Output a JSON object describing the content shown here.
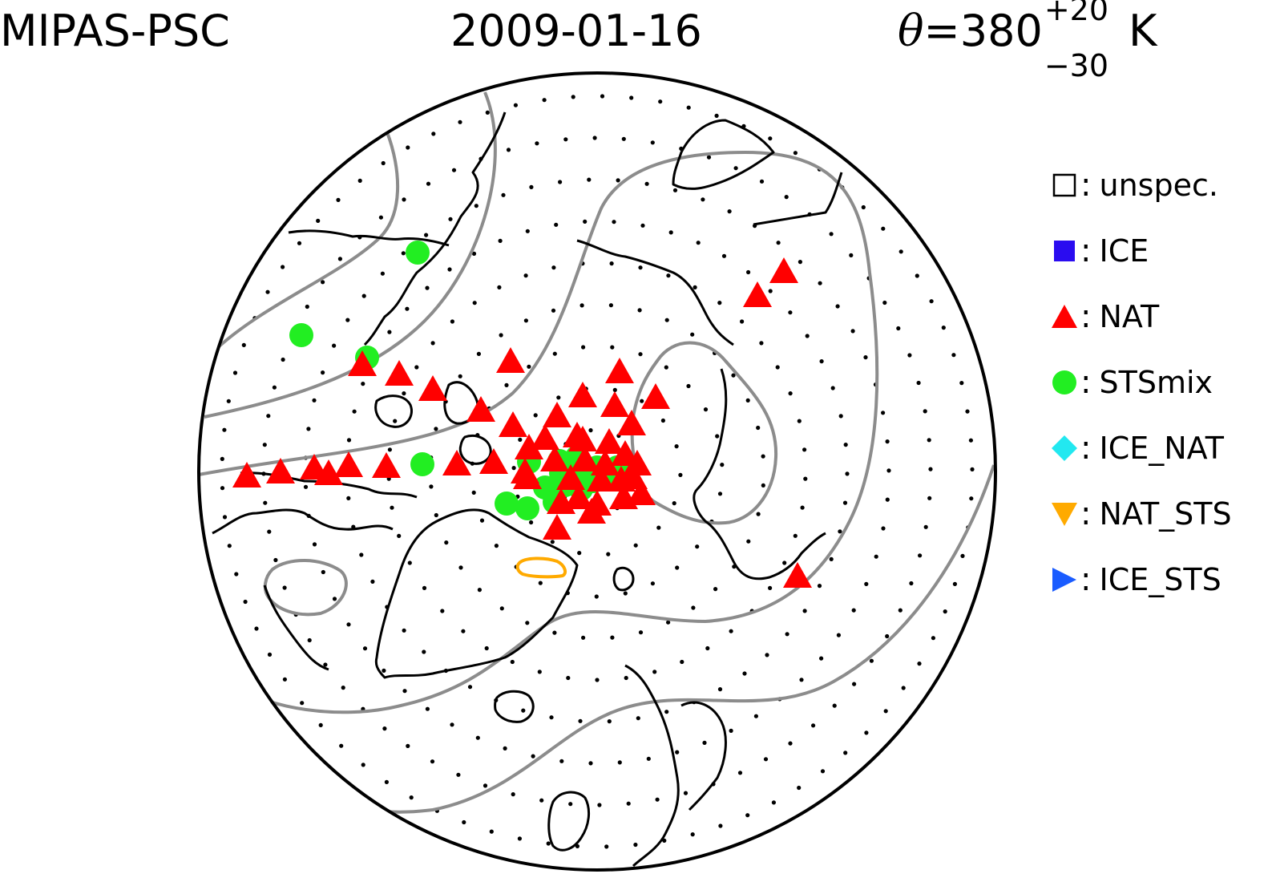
{
  "title": {
    "instrument": "MIPAS-PSC",
    "date": "2009-01-16",
    "theta_symbol": "θ",
    "theta_eq": "=380",
    "theta_sup": "+20",
    "theta_sub": "−30",
    "theta_unit": "K"
  },
  "legend": [
    {
      "label": "unspec.",
      "marker": "open-square",
      "color": "#000000"
    },
    {
      "label": "ICE",
      "marker": "square",
      "color": "#2a0cf0"
    },
    {
      "label": "NAT",
      "marker": "triangle-up",
      "color": "#ff0000"
    },
    {
      "label": "STSmix",
      "marker": "circle",
      "color": "#22ee22"
    },
    {
      "label": "ICE_NAT",
      "marker": "diamond",
      "color": "#22e8f0"
    },
    {
      "label": "NAT_STS",
      "marker": "triangle-down",
      "color": "#ffaa00"
    },
    {
      "label": "ICE_STS",
      "marker": "triangle-right",
      "color": "#1a5cff"
    }
  ],
  "colors": {
    "coastline": "#000000",
    "contour": "#8c8c8c",
    "nat_sts_contour": "#ffaa00",
    "nat": "#ff0000",
    "stsmix": "#22ee22"
  },
  "map": {
    "projection": "north-polar-stereographic",
    "detections": {
      "NAT": 46,
      "STSmix": 20
    }
  }
}
